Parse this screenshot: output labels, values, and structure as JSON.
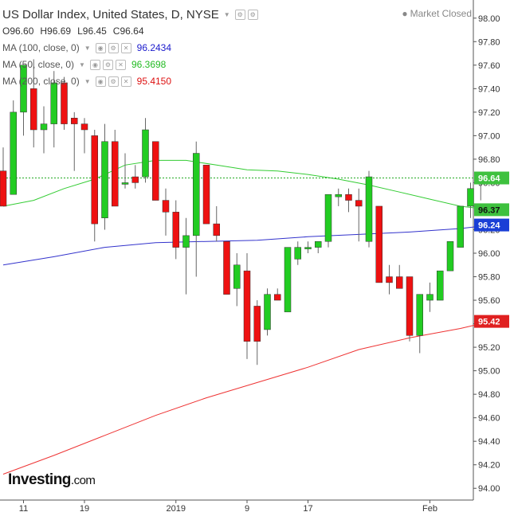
{
  "header": {
    "title": "US Dollar Index, United States, D, NYSE",
    "market_status": "Market Closed",
    "ohlc": {
      "o_label": "O",
      "o": "96.60",
      "h_label": "H",
      "h": "96.69",
      "l_label": "L",
      "l": "96.45",
      "c_label": "C",
      "c": "96.64"
    },
    "ma": [
      {
        "label": "MA (100, close, 0)",
        "value": "96.2434",
        "color": "#1a1acc"
      },
      {
        "label": "MA (50, close, 0)",
        "value": "96.3698",
        "color": "#22bb22"
      },
      {
        "label": "MA (200, close, 0)",
        "value": "95.4150",
        "color": "#dd1111"
      }
    ]
  },
  "logo": {
    "text": "Investing",
    "domain": ".com"
  },
  "chart_data": {
    "type": "candlestick",
    "ylim": [
      93.9,
      98.1
    ],
    "y_ticks": [
      "98.00",
      "97.80",
      "97.60",
      "97.40",
      "97.20",
      "97.00",
      "96.80",
      "96.60",
      "96.40",
      "96.20",
      "96.00",
      "95.80",
      "95.60",
      "95.40",
      "95.20",
      "95.00",
      "94.80",
      "94.60",
      "94.40",
      "94.20",
      "94.00"
    ],
    "x_tick_labels": [
      {
        "label": "11",
        "bar": 2
      },
      {
        "label": "19",
        "bar": 8
      },
      {
        "label": "2019",
        "bar": 17
      },
      {
        "label": "9",
        "bar": 24
      },
      {
        "label": "17",
        "bar": 30
      },
      {
        "label": "Feb",
        "bar": 42
      }
    ],
    "candles": [
      {
        "o": 96.7,
        "h": 96.9,
        "l": 96.4,
        "c": 96.4
      },
      {
        "o": 96.5,
        "h": 97.3,
        "l": 96.5,
        "c": 97.2
      },
      {
        "o": 97.2,
        "h": 97.6,
        "l": 97.0,
        "c": 97.6
      },
      {
        "o": 97.4,
        "h": 97.65,
        "l": 96.9,
        "c": 97.05
      },
      {
        "o": 97.05,
        "h": 97.25,
        "l": 96.85,
        "c": 97.1
      },
      {
        "o": 97.1,
        "h": 97.55,
        "l": 96.9,
        "c": 97.45
      },
      {
        "o": 97.45,
        "h": 97.5,
        "l": 97.05,
        "c": 97.1
      },
      {
        "o": 97.15,
        "h": 97.2,
        "l": 96.7,
        "c": 97.1
      },
      {
        "o": 97.1,
        "h": 97.15,
        "l": 96.85,
        "c": 97.05
      },
      {
        "o": 97.0,
        "h": 97.05,
        "l": 96.1,
        "c": 96.25
      },
      {
        "o": 96.3,
        "h": 97.1,
        "l": 96.2,
        "c": 96.95
      },
      {
        "o": 96.95,
        "h": 97.05,
        "l": 96.4,
        "c": 96.4
      },
      {
        "o": 96.6,
        "h": 96.85,
        "l": 96.55,
        "c": 96.6
      },
      {
        "o": 96.65,
        "h": 96.75,
        "l": 96.55,
        "c": 96.6
      },
      {
        "o": 96.65,
        "h": 97.15,
        "l": 96.6,
        "c": 97.05
      },
      {
        "o": 96.95,
        "h": 96.95,
        "l": 96.45,
        "c": 96.45
      },
      {
        "o": 96.45,
        "h": 96.55,
        "l": 96.15,
        "c": 96.35
      },
      {
        "o": 96.35,
        "h": 96.45,
        "l": 95.95,
        "c": 96.05
      },
      {
        "o": 96.05,
        "h": 96.3,
        "l": 95.65,
        "c": 96.15
      },
      {
        "o": 96.15,
        "h": 96.95,
        "l": 95.8,
        "c": 96.85
      },
      {
        "o": 96.75,
        "h": 96.75,
        "l": 96.25,
        "c": 96.25
      },
      {
        "o": 96.25,
        "h": 96.4,
        "l": 96.1,
        "c": 96.15
      },
      {
        "o": 96.1,
        "h": 96.1,
        "l": 95.65,
        "c": 95.65
      },
      {
        "o": 95.7,
        "h": 96.0,
        "l": 95.55,
        "c": 95.9
      },
      {
        "o": 95.85,
        "h": 96.0,
        "l": 95.1,
        "c": 95.25
      },
      {
        "o": 95.55,
        "h": 95.6,
        "l": 95.05,
        "c": 95.25
      },
      {
        "o": 95.35,
        "h": 95.7,
        "l": 95.3,
        "c": 95.65
      },
      {
        "o": 95.65,
        "h": 95.7,
        "l": 95.6,
        "c": 95.6
      },
      {
        "o": 95.5,
        "h": 96.05,
        "l": 95.5,
        "c": 96.05
      },
      {
        "o": 95.95,
        "h": 96.1,
        "l": 95.9,
        "c": 96.05
      },
      {
        "o": 96.05,
        "h": 96.1,
        "l": 96.0,
        "c": 96.05
      },
      {
        "o": 96.05,
        "h": 96.1,
        "l": 96.0,
        "c": 96.1
      },
      {
        "o": 96.1,
        "h": 96.5,
        "l": 96.05,
        "c": 96.5
      },
      {
        "o": 96.48,
        "h": 96.55,
        "l": 96.4,
        "c": 96.5
      },
      {
        "o": 96.5,
        "h": 96.55,
        "l": 96.35,
        "c": 96.45
      },
      {
        "o": 96.45,
        "h": 96.55,
        "l": 96.1,
        "c": 96.4
      },
      {
        "o": 96.1,
        "h": 96.7,
        "l": 96.05,
        "c": 96.65
      },
      {
        "o": 96.4,
        "h": 96.4,
        "l": 95.75,
        "c": 95.75
      },
      {
        "o": 95.8,
        "h": 95.9,
        "l": 95.65,
        "c": 95.75
      },
      {
        "o": 95.8,
        "h": 95.9,
        "l": 95.7,
        "c": 95.7
      },
      {
        "o": 95.8,
        "h": 95.8,
        "l": 95.25,
        "c": 95.3
      },
      {
        "o": 95.3,
        "h": 95.65,
        "l": 95.15,
        "c": 95.65
      },
      {
        "o": 95.6,
        "h": 95.75,
        "l": 95.5,
        "c": 95.65
      },
      {
        "o": 95.6,
        "h": 95.85,
        "l": 95.6,
        "c": 95.85
      },
      {
        "o": 95.85,
        "h": 96.1,
        "l": 95.85,
        "c": 96.1
      },
      {
        "o": 96.05,
        "h": 96.4,
        "l": 96.05,
        "c": 96.4
      },
      {
        "o": 96.4,
        "h": 96.6,
        "l": 96.3,
        "c": 96.55
      },
      {
        "o": 96.6,
        "h": 96.69,
        "l": 96.45,
        "c": 96.64
      }
    ],
    "ma_series": [
      {
        "name": "MA (100, close, 0)",
        "color": "#3333cc",
        "points": [
          [
            0,
            95.9
          ],
          [
            5,
            95.97
          ],
          [
            10,
            96.05
          ],
          [
            15,
            96.09
          ],
          [
            20,
            96.1
          ],
          [
            25,
            96.11
          ],
          [
            30,
            96.14
          ],
          [
            35,
            96.16
          ],
          [
            40,
            96.18
          ],
          [
            45,
            96.21
          ],
          [
            48,
            96.24
          ]
        ]
      },
      {
        "name": "MA (50, close, 0)",
        "color": "#33cc33",
        "points": [
          [
            0,
            96.4
          ],
          [
            3,
            96.45
          ],
          [
            6,
            96.55
          ],
          [
            9,
            96.63
          ],
          [
            12,
            96.75
          ],
          [
            15,
            96.79
          ],
          [
            18,
            96.79
          ],
          [
            21,
            96.75
          ],
          [
            24,
            96.71
          ],
          [
            27,
            96.7
          ],
          [
            30,
            96.67
          ],
          [
            33,
            96.63
          ],
          [
            36,
            96.58
          ],
          [
            39,
            96.52
          ],
          [
            42,
            96.46
          ],
          [
            45,
            96.4
          ],
          [
            48,
            96.37
          ]
        ]
      },
      {
        "name": "MA (200, close, 0)",
        "color": "#ee3333",
        "points": [
          [
            0,
            94.12
          ],
          [
            5,
            94.28
          ],
          [
            10,
            94.45
          ],
          [
            15,
            94.62
          ],
          [
            20,
            94.77
          ],
          [
            25,
            94.9
          ],
          [
            30,
            95.03
          ],
          [
            35,
            95.18
          ],
          [
            40,
            95.28
          ],
          [
            45,
            95.36
          ],
          [
            48,
            95.42
          ]
        ]
      }
    ],
    "last_price_line": 96.64,
    "price_labels": [
      {
        "value": 96.64,
        "text": "96.64",
        "bg": "#3ec13e",
        "fg": "#ffffff"
      },
      {
        "value": 96.37,
        "text": "96.37",
        "bg": "#3ec13e",
        "fg": "#111111"
      },
      {
        "value": 96.24,
        "text": "96.24",
        "bg": "#1a3fd6",
        "fg": "#ffffff"
      },
      {
        "value": 95.42,
        "text": "95.42",
        "bg": "#e02020",
        "fg": "#ffffff"
      }
    ],
    "colors": {
      "up": "#22cc22",
      "down": "#ee1111",
      "wick": "#666666",
      "grid": "#e6e6e6"
    }
  }
}
